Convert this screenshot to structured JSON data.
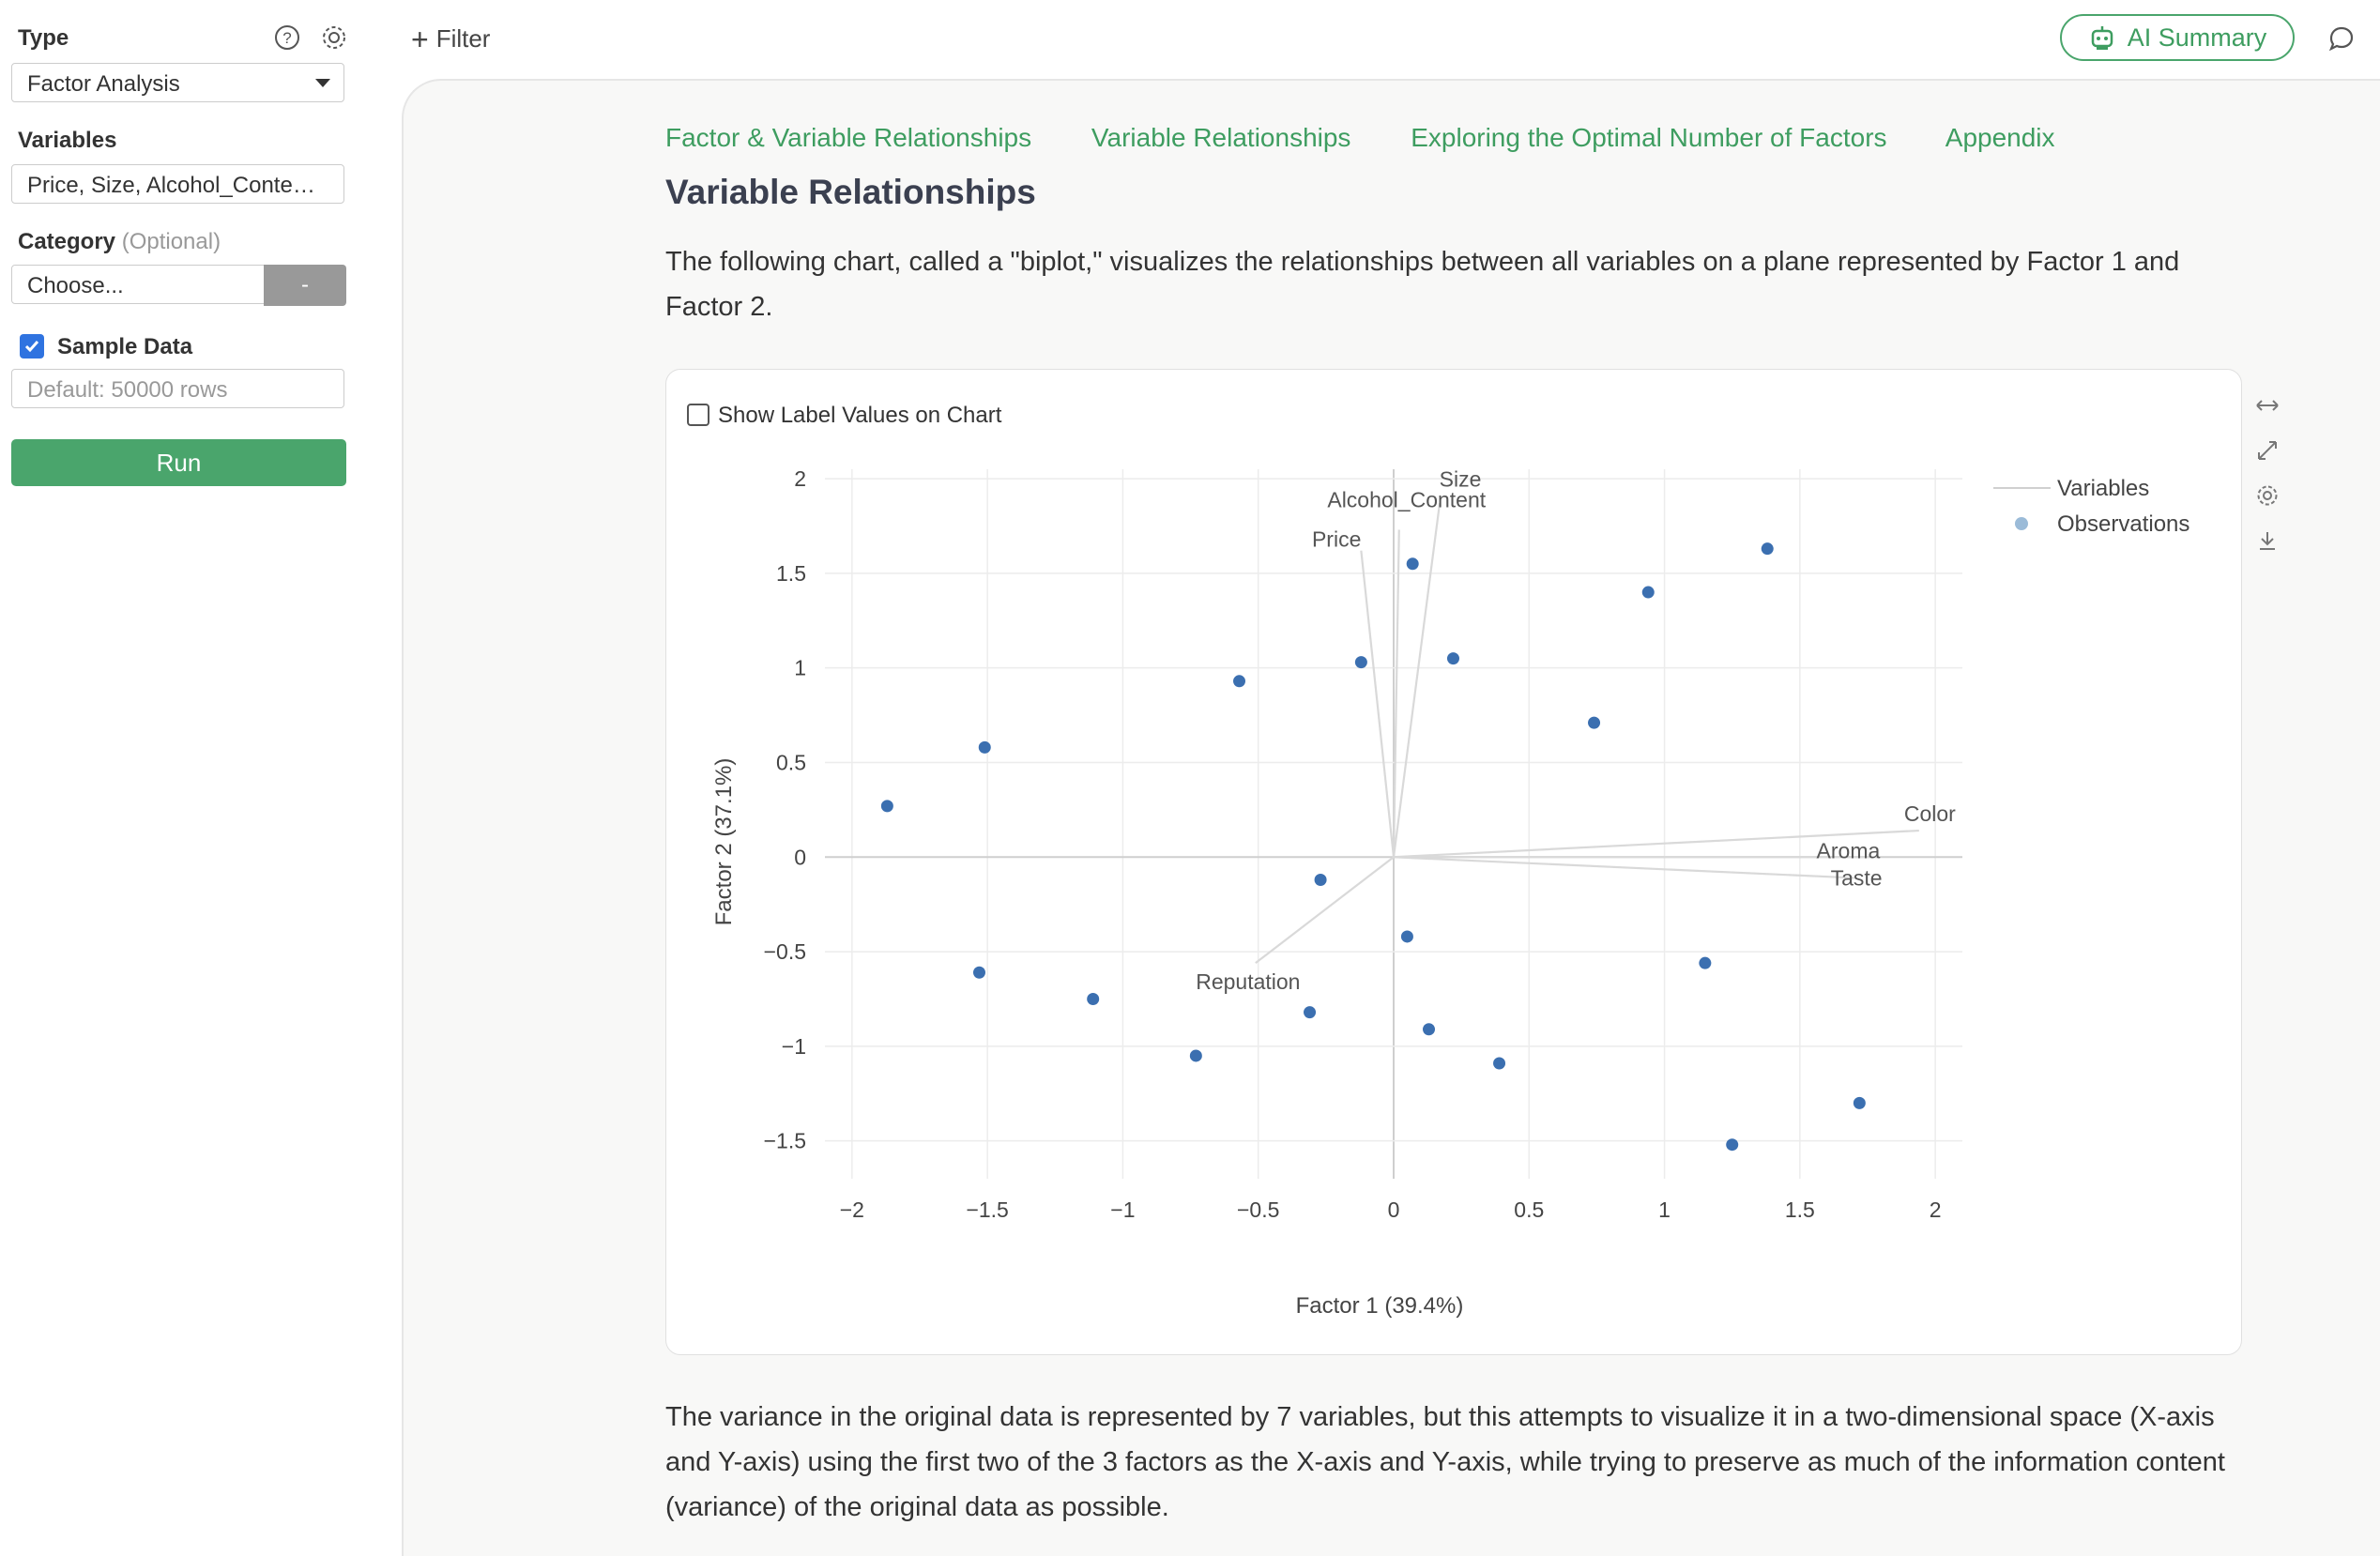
{
  "sidebar": {
    "type_label": "Type",
    "type_value": "Factor Analysis",
    "variables_label": "Variables",
    "variables_value": "Price, Size, Alcohol_Conte…",
    "category_label": "Category",
    "category_optional": "(Optional)",
    "category_value": "Choose...",
    "category_clear": "-",
    "sample_label": "Sample Data",
    "sample_checked": true,
    "sample_placeholder": "Default: 50000 rows",
    "run_label": "Run"
  },
  "header": {
    "filter_label": "Filter",
    "ai_summary_label": "AI Summary"
  },
  "main": {
    "tabs": [
      "Factor & Variable Relationships",
      "Variable Relationships",
      "Exploring the Optimal Number of Factors",
      "Appendix"
    ],
    "title": "Variable Relationships",
    "intro": "The following chart, called a \"biplot,\" visualizes the relationships between all variables on a plane represented by Factor 1 and Factor 2.",
    "show_labels_label": "Show Label Values on Chart",
    "outro": "The variance in the original data is represented by 7 variables, but this attempts to visualize it in a two-dimensional space (X-axis and Y-axis) using the first two of the 3 factors as the X-axis and Y-axis, while trying to preserve as much of the information content (variance) of the original data as possible."
  },
  "colors": {
    "accent": "#4aa56c",
    "point": "#3b6fb0",
    "vector": "#d9d9d9"
  },
  "chart_data": {
    "type": "scatter",
    "xlabel": "Factor 1 (39.4%)",
    "ylabel": "Factor 2 (37.1%)",
    "xlim": [
      -2.1,
      2.1
    ],
    "ylim": [
      -1.7,
      2.05
    ],
    "xticks": [
      -2,
      -1.5,
      -1,
      -0.5,
      0,
      0.5,
      1,
      1.5,
      2
    ],
    "yticks": [
      -1.5,
      -1,
      -0.5,
      0,
      0.5,
      1,
      1.5,
      2
    ],
    "grid": true,
    "legend_position": "top-right",
    "legend": [
      "Variables",
      "Observations"
    ],
    "vectors": [
      {
        "name": "Size",
        "x": 0.17,
        "y": 1.87
      },
      {
        "name": "Alcohol_Content",
        "x": 0.02,
        "y": 1.73
      },
      {
        "name": "Price",
        "x": -0.12,
        "y": 1.62
      },
      {
        "name": "Color",
        "x": 1.94,
        "y": 0.14
      },
      {
        "name": "Aroma",
        "x": 1.79,
        "y": 0.0
      },
      {
        "name": "Taste",
        "x": 1.7,
        "y": -0.11
      },
      {
        "name": "Reputation",
        "x": -0.51,
        "y": -0.56
      }
    ],
    "observations": [
      {
        "x": 0.07,
        "y": 1.55
      },
      {
        "x": 1.38,
        "y": 1.63
      },
      {
        "x": 0.94,
        "y": 1.4
      },
      {
        "x": -0.12,
        "y": 1.03
      },
      {
        "x": 0.22,
        "y": 1.05
      },
      {
        "x": -0.57,
        "y": 0.93
      },
      {
        "x": 0.74,
        "y": 0.71
      },
      {
        "x": -1.51,
        "y": 0.58
      },
      {
        "x": -1.87,
        "y": 0.27
      },
      {
        "x": -0.27,
        "y": -0.12
      },
      {
        "x": 0.05,
        "y": -0.42
      },
      {
        "x": 1.15,
        "y": -0.56
      },
      {
        "x": -1.53,
        "y": -0.61
      },
      {
        "x": -1.11,
        "y": -0.75
      },
      {
        "x": -0.31,
        "y": -0.82
      },
      {
        "x": 0.13,
        "y": -0.91
      },
      {
        "x": -0.73,
        "y": -1.05
      },
      {
        "x": 0.39,
        "y": -1.09
      },
      {
        "x": 1.72,
        "y": -1.3
      },
      {
        "x": 1.25,
        "y": -1.52
      }
    ]
  }
}
